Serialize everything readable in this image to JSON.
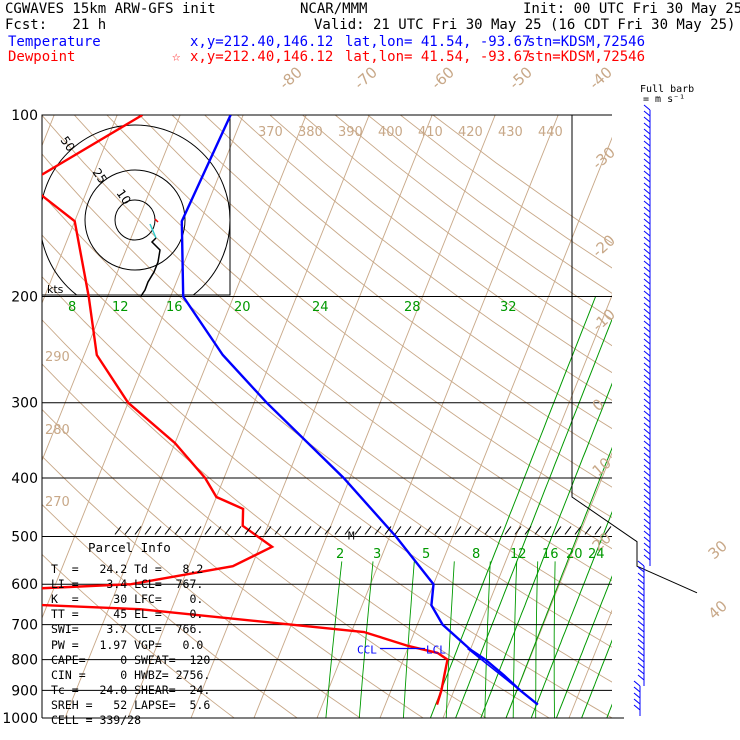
{
  "header": {
    "line1_left": "CGWAVES 15km ARW-GFS init",
    "line1_mid": "NCAR/MMM",
    "line1_right": "Init: 00 UTC Fri 30 May 25",
    "line2_left": "Fcst:   21 h",
    "line2_right": "Valid: 21 UTC Fri 30 May 25 (16 CDT Fri 30 May 25)",
    "temp_label": "Temperature",
    "temp_xy": "x,y=212.40,146.12",
    "temp_latlon": "lat,lon= 41.54, -93.67",
    "temp_stn": "stn=KDSM,72546",
    "dew_label": "Dewpoint",
    "dew_marker": "☆",
    "dew_xy": "x,y=212.40,146.12",
    "dew_latlon": "lat,lon= 41.54, -93.67",
    "dew_stn": "stn=KDSM,72546",
    "barb_title_1": "Full barb",
    "barb_title_2": "= m s⁻¹"
  },
  "colors": {
    "temperature": "#0000ff",
    "dewpoint": "#ff0000",
    "isotherm": "#c8a888",
    "theta": "#c8a888",
    "moist_adiabat": "#009900",
    "hodograph": "#000000"
  },
  "chart_data": {
    "type": "line",
    "title": "",
    "ylabel": "",
    "y_scale": "log-pressure",
    "pressure_ticks": [
      100,
      200,
      300,
      400,
      500,
      600,
      700,
      800,
      900,
      1000
    ],
    "isotherm_labels": [
      "-80",
      "-70",
      "-60",
      "-50",
      "-40",
      "-30",
      "-20",
      "-10",
      "0",
      "10",
      "20",
      "30",
      "40"
    ],
    "theta_labels": [
      "370",
      "380",
      "390",
      "400",
      "410",
      "420",
      "430",
      "440",
      "290",
      "280",
      "270"
    ],
    "moist_adiabat_labels": [
      "8",
      "12",
      "16",
      "20",
      "24",
      "28",
      "32"
    ],
    "mixing_ratio_labels": [
      "2",
      "3",
      "5",
      "8",
      "12",
      "16",
      "20",
      "24"
    ],
    "series": [
      {
        "name": "Temperature",
        "points": [
          {
            "p": 100,
            "t": -62
          },
          {
            "p": 150,
            "t": -63
          },
          {
            "p": 200,
            "t": -58
          },
          {
            "p": 250,
            "t": -48
          },
          {
            "p": 300,
            "t": -38
          },
          {
            "p": 400,
            "t": -21
          },
          {
            "p": 500,
            "t": -9
          },
          {
            "p": 600,
            "t": 0
          },
          {
            "p": 650,
            "t": 1
          },
          {
            "p": 700,
            "t": 4
          },
          {
            "p": 770,
            "t": 10
          },
          {
            "p": 800,
            "t": 13
          },
          {
            "p": 850,
            "t": 17
          },
          {
            "p": 900,
            "t": 20.5
          },
          {
            "p": 950,
            "t": 24.2
          }
        ]
      },
      {
        "name": "Dewpoint",
        "points": [
          {
            "p": 100,
            "t": -76
          },
          {
            "p": 130,
            "t": -90
          },
          {
            "p": 150,
            "t": -80
          },
          {
            "p": 200,
            "t": -73
          },
          {
            "p": 250,
            "t": -68
          },
          {
            "p": 300,
            "t": -60
          },
          {
            "p": 350,
            "t": -50
          },
          {
            "p": 400,
            "t": -43
          },
          {
            "p": 430,
            "t": -40
          },
          {
            "p": 450,
            "t": -35
          },
          {
            "p": 480,
            "t": -34
          },
          {
            "p": 520,
            "t": -28
          },
          {
            "p": 560,
            "t": -33
          },
          {
            "p": 600,
            "t": -48
          },
          {
            "p": 630,
            "t": -92
          },
          {
            "p": 660,
            "t": -45
          },
          {
            "p": 720,
            "t": -8
          },
          {
            "p": 760,
            "t": 0
          },
          {
            "p": 780,
            "t": 5
          },
          {
            "p": 800,
            "t": 7
          },
          {
            "p": 850,
            "t": 7.5
          },
          {
            "p": 900,
            "t": 8
          },
          {
            "p": 950,
            "t": 8.2
          }
        ]
      }
    ]
  },
  "hodograph": {
    "ring_labels": [
      "50",
      "25",
      "10"
    ],
    "units": "kts"
  },
  "annotations": {
    "ccl": "CCL",
    "lcl": "LCL",
    "m": "M"
  },
  "parcel_info": {
    "title": "Parcel Info",
    "rows": [
      "T  =   24.2 Td =   8.2",
      "LI =    3.4 LCL=  767.",
      "K  =     30 LFC=    0.",
      "TT =     45 EL =    0.",
      "SWI=    3.7 CCL=  766.",
      "PW =   1.97 VGP=   0.0",
      "CAPE=     0 SWEAT=  120",
      "CIN =     0 HWBZ= 2756.",
      "Tc =   24.0 SHEAR=  24.",
      "SREH =   52 LAPSE=  5.6",
      "CELL = 339/28"
    ]
  }
}
